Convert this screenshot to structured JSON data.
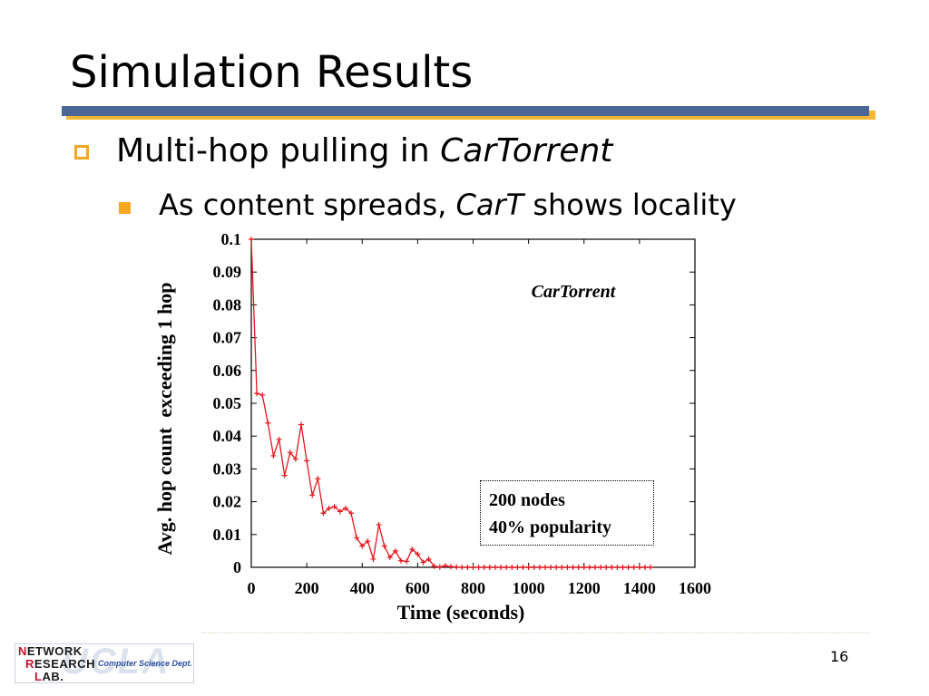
{
  "slide": {
    "title": "Simulation Results",
    "bullet1_prefix": "Multi-hop pulling in ",
    "bullet1_em": "CarTorrent",
    "bullet2_prefix": "As content spreads, ",
    "bullet2_em": "CarT",
    "bullet2_suffix": " shows locality",
    "page_number": "16"
  },
  "logo": {
    "line1_first": "N",
    "line1_rest": "ETWORK",
    "line2_first": "R",
    "line2_rest": "ESEARCH",
    "line3_first": "L",
    "line3_rest": "AB.",
    "dept": "Computer Science Dept.",
    "bg_text": "UCLA"
  },
  "legend": {
    "line1": "200 nodes",
    "line2": "40% popularity"
  },
  "colors": {
    "title_bar_blue": "#4a6896",
    "title_bar_gold": "#f5b634",
    "bullet_orange": "#f5a623",
    "series_red": "#e8141c"
  },
  "chart_data": {
    "type": "line",
    "title": "",
    "xlabel": "Time (seconds)",
    "ylabel": "Avg. hop count  exceeding 1 hop",
    "xlim": [
      0,
      1600
    ],
    "ylim": [
      0,
      0.1
    ],
    "x_ticks": [
      0,
      200,
      400,
      600,
      800,
      1000,
      1200,
      1400,
      1600
    ],
    "x_tick_labels": [
      "0",
      "200",
      "400",
      "600",
      "800",
      "1000",
      "1200",
      "1400",
      "1600"
    ],
    "y_ticks": [
      0,
      0.01,
      0.02,
      0.03,
      0.04,
      0.05,
      0.06,
      0.07,
      0.08,
      0.09,
      0.1
    ],
    "y_tick_labels": [
      "0",
      "0.01",
      "0.02",
      "0.03",
      "0.04",
      "0.05",
      "0.06",
      "0.07",
      "0.08",
      "0.09",
      "0.1"
    ],
    "annotation": "CarTorrent",
    "grid": false,
    "series": [
      {
        "name": "",
        "color": "#e8141c",
        "marker": "plus",
        "x": [
          0,
          20,
          40,
          60,
          80,
          100,
          120,
          140,
          160,
          180,
          200,
          220,
          240,
          260,
          280,
          300,
          320,
          340,
          360,
          380,
          400,
          420,
          440,
          460,
          480,
          500,
          520,
          540,
          560,
          580,
          600,
          620,
          640,
          660,
          680,
          700,
          720,
          740,
          760,
          780,
          800,
          820,
          840,
          860,
          880,
          900,
          920,
          940,
          960,
          980,
          1000,
          1020,
          1040,
          1060,
          1080,
          1100,
          1120,
          1140,
          1160,
          1180,
          1200,
          1220,
          1240,
          1260,
          1280,
          1300,
          1320,
          1340,
          1360,
          1380,
          1400,
          1420,
          1440
        ],
        "y": [
          0.1,
          0.053,
          0.0525,
          0.044,
          0.034,
          0.039,
          0.028,
          0.035,
          0.033,
          0.0435,
          0.0325,
          0.022,
          0.027,
          0.0165,
          0.018,
          0.0185,
          0.017,
          0.018,
          0.0165,
          0.009,
          0.0065,
          0.008,
          0.0025,
          0.013,
          0.0065,
          0.003,
          0.005,
          0.002,
          0.0018,
          0.0055,
          0.004,
          0.0015,
          0.0025,
          0.0003,
          0.0001,
          0.0005,
          0.0002,
          0.0001,
          0.0,
          0.0,
          0.0,
          0.0,
          0.0,
          0.0,
          0.0,
          0.0,
          0.0,
          0.0,
          0.0,
          0.0,
          0.0,
          0.0,
          0.0,
          0.0,
          0.0,
          0.0,
          0.0,
          0.0,
          0.0,
          0.0,
          0.0,
          0.0,
          0.0,
          0.0,
          0.0,
          0.0,
          0.0,
          0.0,
          0.0,
          0.0,
          0.0,
          0.0,
          0.0
        ]
      }
    ]
  }
}
